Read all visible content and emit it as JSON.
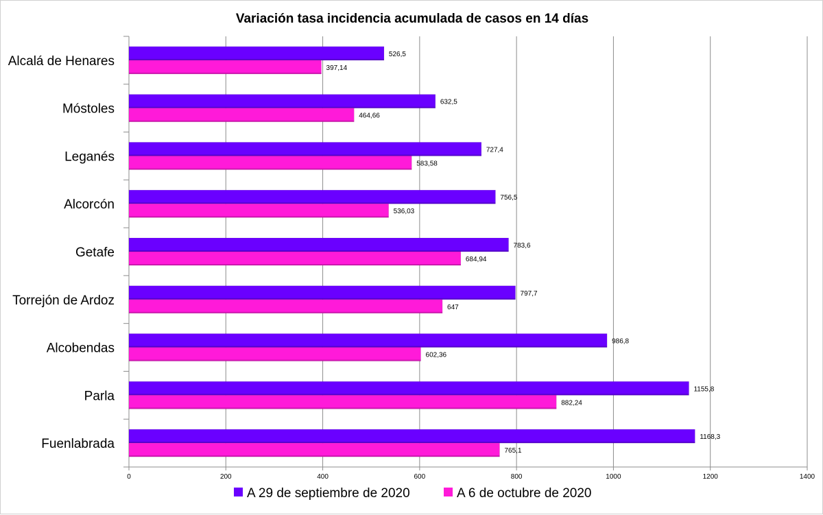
{
  "chart_data": {
    "type": "bar",
    "orientation": "horizontal",
    "title": "Variación tasa incidencia acumulada de casos en 14 días",
    "xlabel": "",
    "ylabel": "",
    "xlim": [
      0,
      1400
    ],
    "x_ticks": [
      "0",
      "200",
      "400",
      "600",
      "800",
      "1000",
      "1200",
      "1400"
    ],
    "grid": true,
    "legend_position": "bottom",
    "categories": [
      "Alcalá de Henares",
      "Móstoles",
      "Leganés",
      "Alcorcón",
      "Getafe",
      "Torrejón de Ardoz",
      "Alcobendas",
      "Parla",
      "Fuenlabrada"
    ],
    "series": [
      {
        "name": "A 29 de septiembre de 2020",
        "color": "#6a00ff",
        "values": [
          526.5,
          632.5,
          727.4,
          756.5,
          783.6,
          797.7,
          986.8,
          1155.8,
          1168.3
        ],
        "labels": [
          "526,5",
          "632,5",
          "727,4",
          "756,5",
          "783,6",
          "797,7",
          "986,8",
          "1155,8",
          "1168,3"
        ]
      },
      {
        "name": "A 6 de octubre de 2020",
        "color": "#ff1ad9",
        "values": [
          397.14,
          464.66,
          583.58,
          536.03,
          684.94,
          647,
          602.36,
          882.24,
          765.1
        ],
        "labels": [
          "397,14",
          "464,66",
          "583,58",
          "536,03",
          "684,94",
          "647",
          "602,36",
          "882,24",
          "765,1"
        ]
      }
    ]
  }
}
